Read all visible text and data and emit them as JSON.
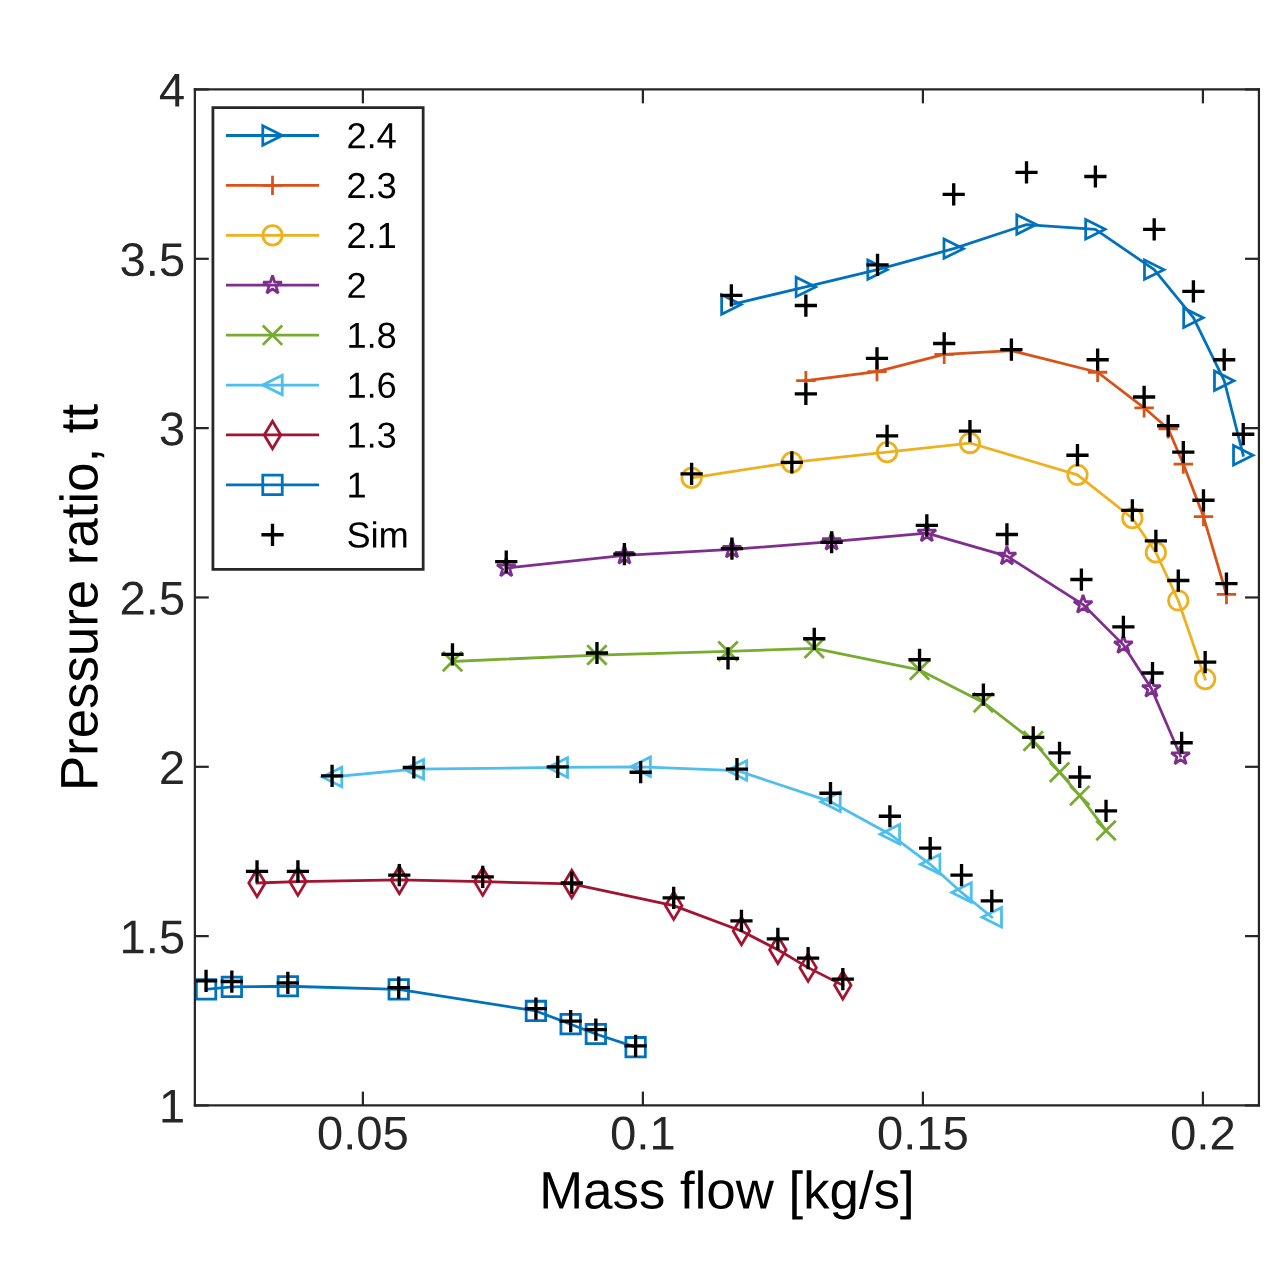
{
  "chart_data": {
    "type": "line",
    "xlabel": "Mass flow [kg/s]",
    "ylabel": "Pressure ratio, tt",
    "xlim": [
      0.02,
      0.21
    ],
    "ylim": [
      1,
      4
    ],
    "xticks": [
      0.05,
      0.1,
      0.15,
      0.2
    ],
    "yticks": [
      1,
      1.5,
      2,
      2.5,
      3,
      3.5,
      4
    ],
    "grid": false,
    "legend": "top left",
    "series": [
      {
        "name": "2.4",
        "color": "#0072bd",
        "marker": "triangle-right",
        "x": [
          0.1158,
          0.1291,
          0.1419,
          0.1555,
          0.1685,
          0.1808,
          0.1913,
          0.1983,
          0.2038,
          0.2072
        ],
        "values": [
          3.365,
          3.417,
          3.468,
          3.53,
          3.601,
          3.587,
          3.468,
          3.326,
          3.14,
          2.92
        ]
      },
      {
        "name": "2.3",
        "color": "#d95319",
        "marker": "cross",
        "x": [
          0.1291,
          0.1418,
          0.1538,
          0.1658,
          0.1812,
          0.1895,
          0.1938,
          0.1965,
          0.2001,
          0.2042
        ],
        "values": [
          3.14,
          3.167,
          3.218,
          3.229,
          3.165,
          3.06,
          2.998,
          2.894,
          2.739,
          2.509
        ]
      },
      {
        "name": "2.1",
        "color": "#edb120",
        "marker": "circle",
        "x": [
          0.1087,
          0.1266,
          0.1436,
          0.1584,
          0.1776,
          0.1874,
          0.1916,
          0.1956,
          0.2004
        ],
        "values": [
          2.853,
          2.899,
          2.929,
          2.956,
          2.862,
          2.734,
          2.633,
          2.491,
          2.259
        ]
      },
      {
        "name": "2",
        "color": "#7e2f8e",
        "marker": "star",
        "x": [
          0.0756,
          0.0967,
          0.1159,
          0.1337,
          0.1507,
          0.165,
          0.1786,
          0.1858,
          0.1908,
          0.196
        ],
        "values": [
          2.587,
          2.624,
          2.642,
          2.665,
          2.69,
          2.622,
          2.479,
          2.36,
          2.231,
          2.032
        ]
      },
      {
        "name": "1.8",
        "color": "#77ac30",
        "marker": "x",
        "x": [
          0.066,
          0.0918,
          0.1152,
          0.1306,
          0.1494,
          0.1608,
          0.1697,
          0.1744,
          0.178,
          0.1827
        ],
        "values": [
          2.311,
          2.33,
          2.341,
          2.35,
          2.286,
          2.19,
          2.076,
          1.984,
          1.915,
          1.812
        ]
      },
      {
        "name": "1.6",
        "color": "#4dbeee",
        "marker": "triangle-left",
        "x": [
          0.0445,
          0.0591,
          0.0848,
          0.0996,
          0.1168,
          0.1335,
          0.1441,
          0.1513,
          0.1569,
          0.1623
        ],
        "values": [
          1.97,
          1.993,
          1.998,
          2.0,
          1.989,
          1.897,
          1.801,
          1.712,
          1.629,
          1.556
        ]
      },
      {
        "name": "1.3",
        "color": "#a2142f",
        "marker": "diamond",
        "x": [
          0.0311,
          0.0384,
          0.0565,
          0.0714,
          0.0873,
          0.1055,
          0.1176,
          0.1241,
          0.1295,
          0.1357
        ],
        "values": [
          1.657,
          1.661,
          1.666,
          1.661,
          1.654,
          1.59,
          1.515,
          1.46,
          1.407,
          1.355
        ]
      },
      {
        "name": "1",
        "color": "#0072bd",
        "marker": "square",
        "x": [
          0.022,
          0.0266,
          0.0366,
          0.0564,
          0.0809,
          0.0871,
          0.0916,
          0.0987
        ],
        "values": [
          1.343,
          1.35,
          1.352,
          1.343,
          1.279,
          1.24,
          1.211,
          1.172
        ]
      },
      {
        "name": "Sim",
        "type": "scatter",
        "color": "#000000",
        "marker": "cross",
        "x": [
          0.022,
          0.0266,
          0.0366,
          0.0564,
          0.0809,
          0.0871,
          0.0916,
          0.0987,
          0.0311,
          0.0384,
          0.0565,
          0.0714,
          0.0873,
          0.1055,
          0.1176,
          0.1241,
          0.1295,
          0.1357,
          0.0445,
          0.0591,
          0.0848,
          0.0996,
          0.1168,
          0.1335,
          0.1441,
          0.1513,
          0.1569,
          0.1623,
          0.066,
          0.0918,
          0.1152,
          0.1306,
          0.1494,
          0.1608,
          0.1697,
          0.1744,
          0.178,
          0.1827,
          0.0756,
          0.0967,
          0.1159,
          0.1337,
          0.1507,
          0.165,
          0.1783,
          0.1858,
          0.191,
          0.1962,
          0.1087,
          0.1266,
          0.1436,
          0.1584,
          0.1776,
          0.1874,
          0.1916,
          0.1956,
          0.2004,
          0.1291,
          0.1418,
          0.1538,
          0.1658,
          0.1812,
          0.1895,
          0.1938,
          0.1965,
          0.2001,
          0.2042,
          0.1158,
          0.1291,
          0.1419,
          0.1555,
          0.1685,
          0.1808,
          0.1913,
          0.1983,
          0.2038,
          0.2072
        ],
        "values": [
          1.368,
          1.366,
          1.362,
          1.348,
          1.286,
          1.249,
          1.224,
          1.176,
          1.691,
          1.691,
          1.68,
          1.675,
          1.657,
          1.613,
          1.545,
          1.492,
          1.435,
          1.373,
          1.973,
          1.998,
          2.0,
          1.984,
          1.993,
          1.922,
          1.854,
          1.76,
          1.68,
          1.604,
          2.332,
          2.336,
          2.32,
          2.378,
          2.316,
          2.213,
          2.087,
          2.041,
          1.97,
          1.87,
          2.606,
          2.628,
          2.644,
          2.663,
          2.713,
          2.686,
          2.553,
          2.413,
          2.277,
          2.071,
          2.865,
          2.899,
          2.977,
          2.991,
          2.92,
          2.757,
          2.667,
          2.55,
          2.309,
          3.101,
          3.206,
          3.25,
          3.232,
          3.202,
          3.092,
          3.007,
          2.929,
          2.787,
          2.541,
          3.392,
          3.362,
          3.482,
          3.69,
          3.755,
          3.743,
          3.587,
          3.404,
          3.202,
          2.982
        ]
      }
    ]
  }
}
